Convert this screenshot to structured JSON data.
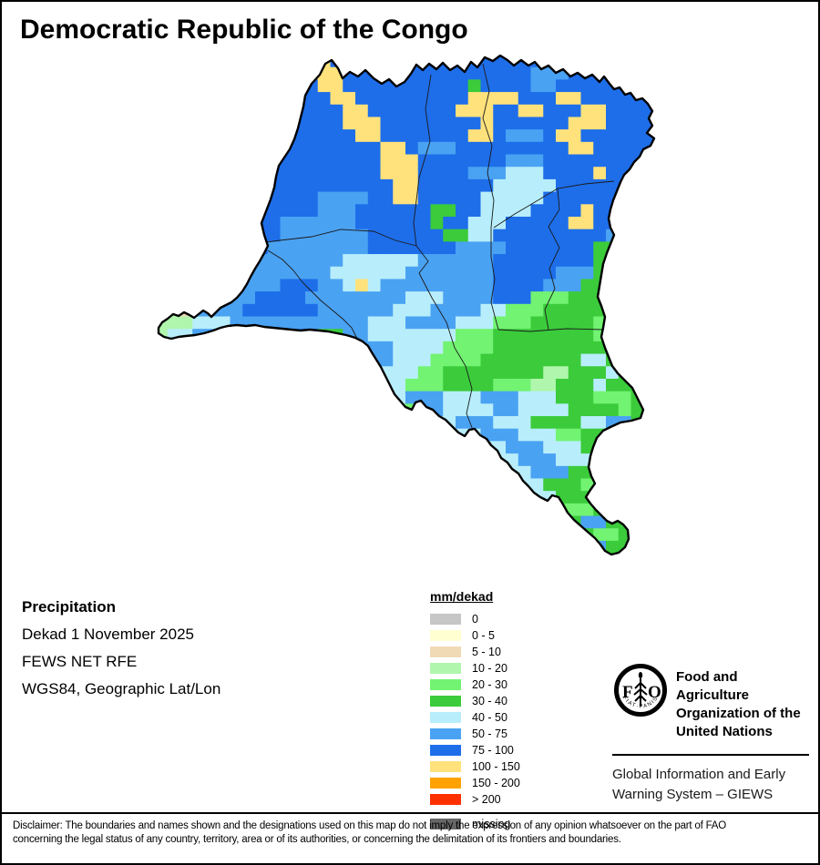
{
  "title": "Democratic Republic of the Congo",
  "info": {
    "product": "Precipitation",
    "dekad": "Dekad 1 November 2025",
    "source": "FEWS NET RFE",
    "projection": "WGS84, Geographic Lat/Lon"
  },
  "legend": {
    "title": "mm/dekad",
    "entries": [
      {
        "label": "0",
        "color": "#c6c6c6"
      },
      {
        "label": "0 - 5",
        "color": "#ffffd2"
      },
      {
        "label": "5 - 10",
        "color": "#f0dab6"
      },
      {
        "label": "10 - 20",
        "color": "#b0f6ac"
      },
      {
        "label": "20 - 30",
        "color": "#72f372"
      },
      {
        "label": "30 - 40",
        "color": "#3bcb3b"
      },
      {
        "label": "40 - 50",
        "color": "#b8eefb"
      },
      {
        "label": "50 - 75",
        "color": "#4aa2f2"
      },
      {
        "label": "75 - 100",
        "color": "#1e6eea"
      },
      {
        "label": "100 - 150",
        "color": "#ffe27b"
      },
      {
        "label": "150 - 200",
        "color": "#ffa200"
      },
      {
        "label": "> 200",
        "color": "#fe3000"
      }
    ],
    "missing": {
      "label": "missing",
      "color": "#676767"
    }
  },
  "fao": {
    "logo_letter_f": "F",
    "logo_letter_o": "O",
    "logo_motto": "FIAT·PANIS",
    "org_lines": [
      "Food and Agriculture",
      "Organization of the",
      "United Nations"
    ],
    "giews_lines": [
      "Global Information and Early",
      "Warning System – GIEWS"
    ]
  },
  "disclaimer_lines": [
    "Disclaimer: The boundaries and names shown and the designations used on this map do not imply the expression of any opinion whatsoever on the part of FAO",
    "concerning the legal status of any country, territory, area or of its authorities, or concerning the delimitation of its frontiers and boundaries."
  ],
  "map_raster": {
    "palette": {
      "B": "#1e6eea",
      "b": "#4aa2f2",
      "c": "#b8eefb",
      "g": "#3bcb3b",
      "G": "#72f372",
      "L": "#b0f6ac",
      "y": "#ffe27b",
      "t": "#f0dab6",
      "w": "#ffffd2"
    },
    "cols": 40,
    "rows": [
      "BBBBBBBBBBBByyBBBBBBBBBBBBBBBBBBBBBBBBBB",
      "BBBBBBBBBBBByyyBBBBBBBBBBBBBBBbbbBBBBBBB",
      "BBBBBBBBBBBBByyBBBBBBBBBBgBBBBbbBBBBBBBB",
      "BBBBBBBBBBBBBByyBBBBBBBBByyyyBBByyBBBBBB",
      "BBBBBBBBBBBBBBByyBBBBBBByyyBByyBBByyBBBB",
      "BBBBBBBBBBBBBBByyyBBBBBBBByBBBBBByyyBBBB",
      "BBBBBBBBBBBBBBBByyBBBBBBByyBbbbByyBBBBBB",
      "BBBBBBBBBBBBBBBBBByyBbbbBBBBBBBBByyBBBBB",
      "BBBBBBBBBBBBBBBBBByyyBBBBBBBbbbBBBBBBBBB",
      "BBBBBBBBBBBBBBBBBByyyBBBBbbbcccBBBByBBBB",
      "BBBBBBBBBBBBBBBBBBByyBBBBBBcccccBBBBBBBB",
      "BBBBBBBBBBBBBbbbbBByyBBBBBcccccBBBBBBBBB",
      "BBBBBBBBBBBBBbbbBBBBBBggBBccccBBBByBBBBB",
      "BBBBBBBBBBbbbbbbBBBBBBgBBcccBBBBByyBBBBB",
      "BBBBBBBBBBbbbbbbbBBBBBBggccBBBBBBBBBbBBB",
      "BBBBBBBBBbbbbbbbbBBBBBBBbbbbBBBBBBBggBBB",
      "bbbbbbbbbbbbbbbccccccbbbbbbBBBBBBBBggBBB",
      "bbbbbbbbbbbbbbccccccbbbbbbbBBBBBbbbgggBB",
      "bbbbbbbbbbBBBbbcycbbbbbbbbbBBBBbbbgggGBB",
      "bbbyybbbBBBBbbbbbbbbcccbbbbBBBGGGggggGGG",
      "LLtbbbbBBBBBBbbbbbbcccbbbbccGGGgggggGGgg",
      "LLLcccbbbbbbbbbbbcccbbbbcccGGGgggggGGGgg",
      "LccbbbbbbbBBBggbbcccccccGGGggggggggGGggg",
      "bbbbbbbbbbbbbggbbbbccccGGGGggggggggggGGG",
      "bbbbbbbbbbbbbbbbbbbcccGGGGggggggggccgggg",
      "bbbbbbbbbbbbbbbbbbcccGGggggggggLLgggcggg",
      "bbbbbbbbbbbbbbbbbcccGGGggggGGGLLgggcgggg",
      "bbbbbbbbbbbbbbbbbcccbbbcccbbbcccgggGGGgg",
      "bbbbbbbbbbbbbbbbbccGGbbccccbbccccggggGgg",
      "bbbbbbbbbbbbbbbbbcgggcccbbbcccggggccbbgg",
      "bbbbbbbbbbbbbbbbbgggGGGcccbbbcccGGggccbb",
      "bbbbbbbbbbbbbbbbbggcccGGGcccbbbcccgggccc",
      "bbbbbbbbbbbbbbbbbbGGcccbbbcccbbbcccgggcc",
      "bbbbbbbbbbbbbbbbbbgggcccbbbcccbbbgggcccc",
      "bbbbbbbbbbbbbbbbbbbgggcccbbbcccgggGGgggg",
      "bbbbbbbbbbbbbbbbbbbbgggcccbbbcccgggggggg",
      "ggggggggggggggggggggggggggggggggGGGggggg",
      "ggggggggggggggggggggggggggggggggggbbgggg",
      "gggggggggggggggggggggggggggggggggggGGggg",
      "ggggggggggggggggggggggggggggggggggbbgggg",
      "gggggggggggggggggggggggggggggggggggggggg",
      "gggggggggggggggggggggggggggggggggggggggg"
    ]
  }
}
